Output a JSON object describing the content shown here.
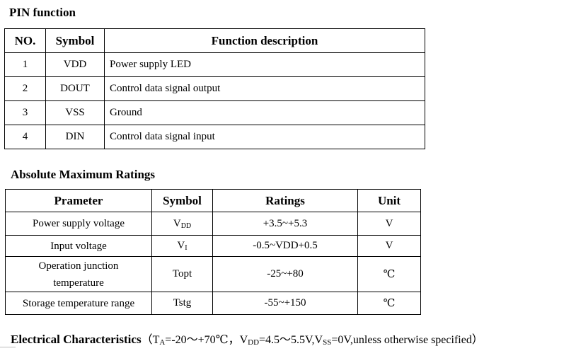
{
  "pin_function": {
    "title": "PIN function",
    "headers": [
      "NO.",
      "Symbol",
      "Function description"
    ],
    "rows": [
      {
        "no": "1",
        "symbol": "VDD",
        "description": "Power supply LED"
      },
      {
        "no": "2",
        "symbol": "DOUT",
        "description": "Control data signal output"
      },
      {
        "no": "3",
        "symbol": "VSS",
        "description": "Ground"
      },
      {
        "no": "4",
        "symbol": "DIN",
        "description": "Control data signal input"
      }
    ]
  },
  "absolute_maximum_ratings": {
    "title": "Absolute Maximum Ratings",
    "headers": [
      "Prameter",
      "Symbol",
      "Ratings",
      "Unit"
    ],
    "rows": [
      {
        "parameter": "Power supply voltage",
        "symbol_main": "V",
        "symbol_sub": "DD",
        "ratings": "+3.5~+5.3",
        "unit": "V"
      },
      {
        "parameter": "Input voltage",
        "symbol_main": "V",
        "symbol_sub": "I",
        "ratings": "-0.5~VDD+0.5",
        "unit": "V"
      },
      {
        "parameter_line1": "Operation junction",
        "parameter_line2": "temperature",
        "symbol_main": "Topt",
        "symbol_sub": "",
        "ratings": "-25~+80",
        "unit": "℃"
      },
      {
        "parameter": "Storage temperature range",
        "symbol_main": "Tstg",
        "symbol_sub": "",
        "ratings": "-55~+150",
        "unit": "℃"
      }
    ]
  },
  "electrical_characteristics": {
    "title": "Electrical Characteristics",
    "cond_open": "（T",
    "cond_a_sub": "A",
    "cond_temp": "=-20～+70℃，V",
    "cond_dd_sub": "DD",
    "cond_vdd": "=4.5～5.5V,V",
    "cond_ss_sub": "SS",
    "cond_rest": "=0V,unless otherwise specified）"
  }
}
